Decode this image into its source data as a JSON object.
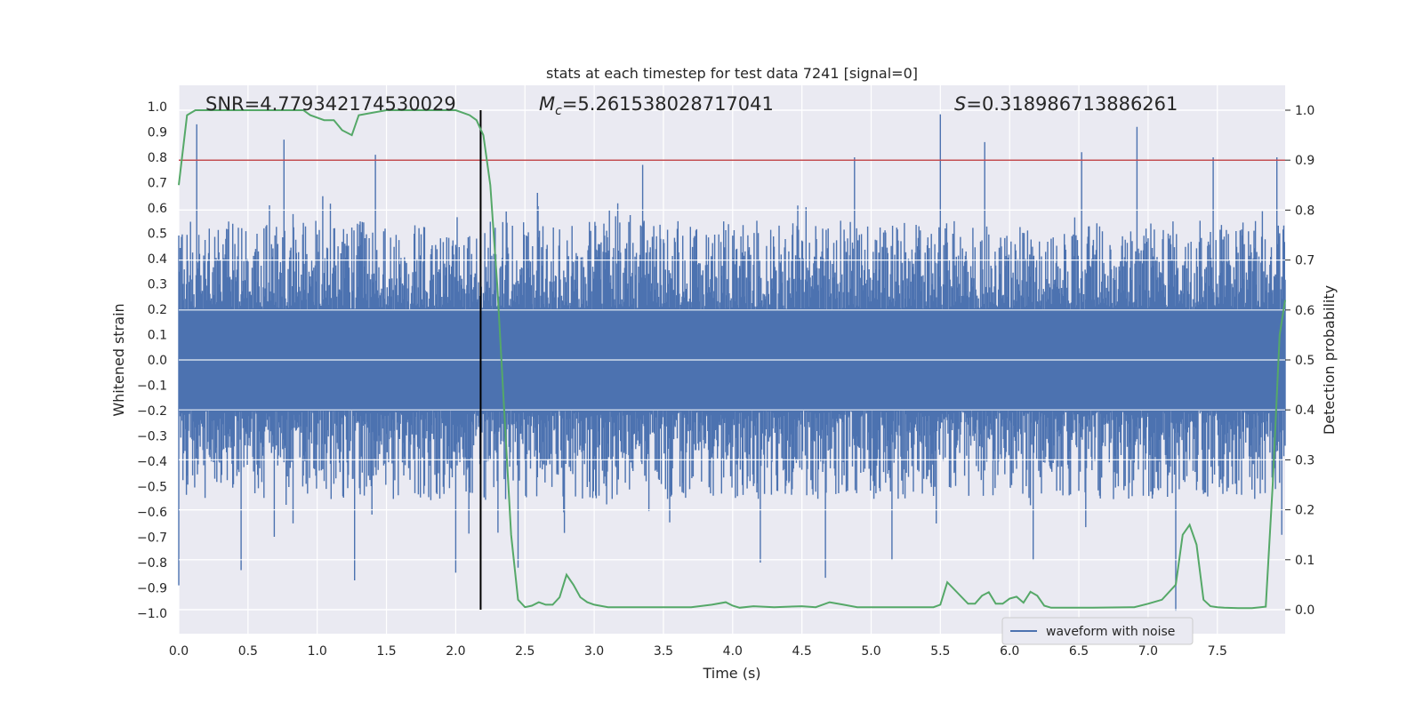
{
  "chart_data": {
    "type": "line",
    "title": "stats at each timestep for test data 7241 [signal=0]",
    "xlabel": "Time (s)",
    "ylabel": "Whitened strain",
    "y2label": "Detection probability",
    "xlim": [
      0.0,
      8.0
    ],
    "ylim": [
      -1.1,
      1.1
    ],
    "y2lim": [
      -0.045,
      1.045
    ],
    "xticks": [
      "0.0",
      "0.5",
      "1.0",
      "1.5",
      "2.0",
      "2.5",
      "3.0",
      "3.5",
      "4.0",
      "4.5",
      "5.0",
      "5.5",
      "6.0",
      "6.5",
      "7.0",
      "7.5"
    ],
    "yticks": [
      "1.0",
      "0.9",
      "0.8",
      "0.7",
      "0.6",
      "0.5",
      "0.4",
      "0.3",
      "0.2",
      "0.1",
      "0.0",
      "-0.1",
      "-0.2",
      "-0.3",
      "-0.4",
      "-0.5",
      "-0.6",
      "-0.7",
      "-0.8",
      "-0.9",
      "-1.0"
    ],
    "y2ticks": [
      "1.0",
      "0.9",
      "0.8",
      "0.7",
      "0.6",
      "0.5",
      "0.4",
      "0.3",
      "0.2",
      "0.1",
      "0.0"
    ],
    "annotations": {
      "snr": "SNR=4.779342174530029",
      "mc_symbol": "M",
      "mc_sub": "c",
      "mc_value": "=5.261538028717041",
      "s_symbol": "S",
      "s_value": "=0.318986713886261"
    },
    "legend": {
      "label": "waveform with noise",
      "position": "lower-right"
    },
    "threshold_y2": 0.9,
    "marker_x": 2.18,
    "waveform": {
      "name": "waveform with noise",
      "color": "#4c72b0",
      "baseline_amplitude": 0.2,
      "typical_peak_range": [
        0.2,
        0.55
      ],
      "upper_spikes": [
        {
          "x": 0.13,
          "y": 0.93
        },
        {
          "x": 0.76,
          "y": 0.87
        },
        {
          "x": 1.42,
          "y": 0.81
        },
        {
          "x": 3.35,
          "y": 0.77
        },
        {
          "x": 4.88,
          "y": 0.8
        },
        {
          "x": 5.5,
          "y": 0.97
        },
        {
          "x": 5.82,
          "y": 0.86
        },
        {
          "x": 6.52,
          "y": 0.82
        },
        {
          "x": 6.92,
          "y": 0.92
        },
        {
          "x": 7.47,
          "y": 0.8
        },
        {
          "x": 7.93,
          "y": 0.8
        }
      ],
      "lower_spikes": [
        {
          "x": 0.0,
          "y": -0.89
        },
        {
          "x": 0.45,
          "y": -0.83
        },
        {
          "x": 1.27,
          "y": -0.87
        },
        {
          "x": 2.0,
          "y": -0.84
        },
        {
          "x": 2.18,
          "y": -0.73
        },
        {
          "x": 2.45,
          "y": -0.82
        },
        {
          "x": 4.2,
          "y": -0.8
        },
        {
          "x": 4.67,
          "y": -0.86
        },
        {
          "x": 5.15,
          "y": -0.79
        },
        {
          "x": 6.17,
          "y": -0.79
        },
        {
          "x": 7.2,
          "y": -0.99
        }
      ]
    },
    "probability": {
      "name": "detection probability",
      "color": "#55a868",
      "x": [
        0.0,
        0.06,
        0.12,
        0.3,
        0.6,
        0.9,
        0.95,
        1.05,
        1.12,
        1.18,
        1.25,
        1.3,
        1.5,
        1.8,
        2.0,
        2.1,
        2.15,
        2.2,
        2.25,
        2.3,
        2.35,
        2.4,
        2.45,
        2.5,
        2.55,
        2.6,
        2.65,
        2.7,
        2.75,
        2.8,
        2.85,
        2.9,
        2.95,
        3.0,
        3.1,
        3.2,
        3.4,
        3.7,
        3.85,
        3.95,
        4.0,
        4.05,
        4.15,
        4.3,
        4.5,
        4.6,
        4.7,
        4.8,
        4.9,
        5.0,
        5.2,
        5.45,
        5.5,
        5.55,
        5.7,
        5.75,
        5.8,
        5.85,
        5.9,
        5.95,
        6.0,
        6.05,
        6.1,
        6.15,
        6.2,
        6.25,
        6.3,
        6.35,
        6.4,
        6.6,
        6.9,
        7.0,
        7.1,
        7.2,
        7.25,
        7.3,
        7.35,
        7.4,
        7.45,
        7.5,
        7.55,
        7.65,
        7.75,
        7.85,
        7.9,
        7.95,
        7.99
      ],
      "y": [
        0.85,
        0.99,
        1.0,
        1.0,
        1.0,
        1.0,
        0.99,
        0.98,
        0.98,
        0.96,
        0.95,
        0.99,
        1.0,
        1.0,
        1.0,
        0.99,
        0.98,
        0.95,
        0.85,
        0.65,
        0.4,
        0.15,
        0.02,
        0.005,
        0.008,
        0.015,
        0.01,
        0.01,
        0.025,
        0.07,
        0.05,
        0.025,
        0.015,
        0.01,
        0.005,
        0.005,
        0.005,
        0.005,
        0.01,
        0.015,
        0.008,
        0.004,
        0.007,
        0.005,
        0.007,
        0.005,
        0.015,
        0.01,
        0.005,
        0.005,
        0.005,
        0.005,
        0.01,
        0.055,
        0.012,
        0.012,
        0.028,
        0.035,
        0.012,
        0.012,
        0.022,
        0.026,
        0.014,
        0.036,
        0.028,
        0.008,
        0.004,
        0.004,
        0.004,
        0.004,
        0.005,
        0.012,
        0.02,
        0.05,
        0.15,
        0.17,
        0.13,
        0.02,
        0.007,
        0.005,
        0.004,
        0.003,
        0.003,
        0.006,
        0.25,
        0.55,
        0.62
      ]
    },
    "threshold_color": "#c44e52",
    "marker_color": "#000000"
  }
}
